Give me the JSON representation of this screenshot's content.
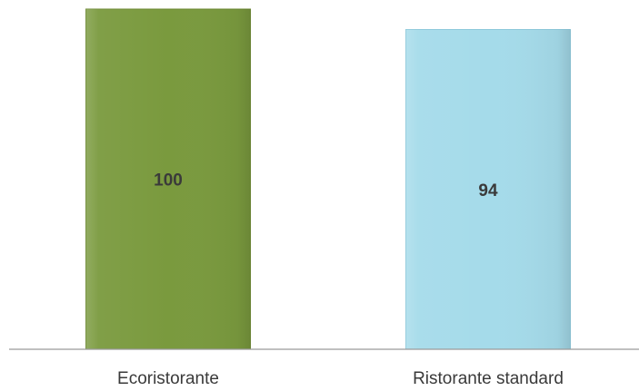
{
  "chart_data": {
    "type": "bar",
    "categories": [
      "Ecoristorante",
      "Ristorante standard"
    ],
    "values": [
      100,
      94
    ],
    "title": "",
    "xlabel": "",
    "ylabel": "",
    "ylim": [
      0,
      100
    ],
    "grid": false,
    "legend": "none",
    "data_labels": [
      "100",
      "94"
    ],
    "colors": {
      "bars": [
        "#7a9a3e",
        "#a5dbea"
      ],
      "bar_borders": [
        "#6c8833",
        "#8ec9db"
      ],
      "axis": "#9a9a9a",
      "text": "#3a3a3a"
    }
  }
}
